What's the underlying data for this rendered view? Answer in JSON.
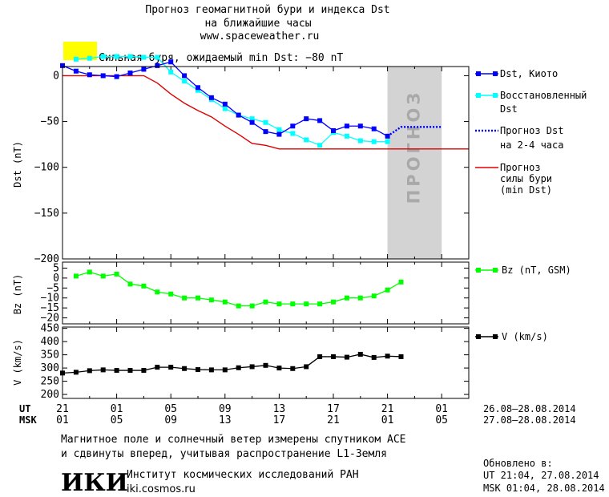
{
  "header": {
    "title_line1": "Прогноз геомагнитной бури и индекса Dst",
    "title_line2": "на ближайшие часы",
    "url": "www.spaceweather.ru",
    "storm_text": "Сильная буря, ожидаемый min Dst: −80 nT",
    "storm_color": "#ffff00"
  },
  "colors": {
    "dst": "#0000ff",
    "restored": "#00ffff",
    "forecast_dst": "#0000ff",
    "storm_forecast": "#dd0000",
    "bz": "#00ff00",
    "v": "#000000",
    "forecast_band": "#d3d3d3"
  },
  "chart_data": [
    {
      "type": "line",
      "ylabel": "Dst (nT)",
      "ylim": [
        -200,
        10
      ],
      "yticks": [
        "0",
        "−50",
        "−100",
        "−150",
        "−200"
      ],
      "xlim": [
        0,
        30
      ],
      "forecast_band": {
        "label": "ПРОГНОЗ",
        "x": [
          24,
          28
        ]
      },
      "series": [
        {
          "name": "Dst, Киото",
          "x": [
            0,
            1,
            2,
            3,
            4,
            5,
            6,
            7,
            8,
            9,
            10,
            11,
            12,
            13,
            14,
            15,
            16,
            17,
            18,
            19,
            20,
            21,
            22,
            23,
            24
          ],
          "values": [
            11,
            5,
            1,
            0,
            -1,
            3,
            7,
            11,
            15,
            0,
            -13,
            -24,
            -31,
            -43,
            -51,
            -61,
            -64,
            -55,
            -47,
            -49,
            -60,
            -55,
            -55,
            -58,
            -66
          ]
        },
        {
          "name": "Восстановленный Dst",
          "x": [
            1,
            2,
            3,
            4,
            5,
            6,
            7,
            8,
            9,
            10,
            11,
            12,
            13,
            14,
            15,
            16,
            17,
            18,
            19,
            20,
            21,
            22,
            23,
            24
          ],
          "values": [
            18,
            19,
            21,
            21,
            21,
            20,
            20,
            4,
            -6,
            -16,
            -26,
            -36,
            -43,
            -47,
            -51,
            -59,
            -63,
            -70,
            -76,
            -62,
            -66,
            -71,
            -72,
            -72
          ]
        },
        {
          "name": "Прогноз Dst на 2-4 часа",
          "x": [
            24,
            25,
            26,
            27,
            28
          ],
          "values": [
            -66,
            -56,
            -56,
            -56,
            -56
          ]
        },
        {
          "name": "Прогноз силы бури (min Dst)",
          "x": [
            0,
            3,
            6,
            7,
            8,
            9,
            10,
            11,
            12,
            13,
            14,
            15,
            16,
            30
          ],
          "values": [
            0,
            0,
            0,
            -8,
            -20,
            -30,
            -38,
            -45,
            -55,
            -64,
            -74,
            -76,
            -80,
            -80
          ]
        }
      ]
    },
    {
      "type": "line",
      "ylabel": "Bz (nT)",
      "ylim": [
        -23,
        8
      ],
      "yticks": [
        "5",
        "0",
        "−5",
        "−10",
        "−15",
        "−20"
      ],
      "xlim": [
        0,
        30
      ],
      "series": [
        {
          "name": "Bz (nT, GSM)",
          "x": [
            1,
            2,
            3,
            4,
            5,
            6,
            7,
            8,
            9,
            10,
            11,
            12,
            13,
            14,
            15,
            16,
            17,
            18,
            19,
            20,
            21,
            22,
            23,
            24,
            25
          ],
          "values": [
            1,
            3,
            1,
            2,
            -3,
            -4,
            -7,
            -8,
            -10,
            -10,
            -11,
            -12,
            -14,
            -14,
            -12,
            -13,
            -13,
            -13,
            -13,
            -12,
            -10,
            -10,
            -9,
            -6,
            -2
          ]
        }
      ]
    },
    {
      "type": "line",
      "ylabel": "V (km/s)",
      "ylim": [
        185,
        455
      ],
      "yticks": [
        "450",
        "400",
        "350",
        "300",
        "250",
        "200"
      ],
      "xlim": [
        0,
        30
      ],
      "series": [
        {
          "name": "V (km/s)",
          "x": [
            0,
            1,
            2,
            3,
            4,
            5,
            6,
            7,
            8,
            9,
            10,
            11,
            12,
            13,
            14,
            15,
            16,
            17,
            18,
            19,
            20,
            21,
            22,
            23,
            24,
            25
          ],
          "values": [
            281,
            284,
            290,
            293,
            291,
            291,
            291,
            303,
            303,
            298,
            294,
            293,
            293,
            301,
            305,
            310,
            300,
            298,
            305,
            343,
            343,
            341,
            352,
            340,
            345,
            343
          ]
        }
      ]
    }
  ],
  "xaxis": {
    "ut_label": "UT",
    "msk_label": "MSK",
    "ut_ticks": [
      "21",
      "01",
      "05",
      "09",
      "13",
      "17",
      "21",
      "01"
    ],
    "msk_ticks": [
      "01",
      "05",
      "09",
      "13",
      "17",
      "21",
      "01",
      "05"
    ],
    "ut_range": "26.08–28.08.2014",
    "msk_range": "27.08–28.08.2014"
  },
  "legend": {
    "dst": "Dst, Киото",
    "restored_1": "Восстановленный",
    "restored_2": "Dst",
    "forecast_1": "Прогноз Dst",
    "forecast_2": "на 2-4 часа",
    "storm_1": "Прогноз",
    "storm_2": "силы бури",
    "storm_3": "(min Dst)",
    "bz": "Bz (nT, GSM)",
    "v": "V (km/s)"
  },
  "footer": {
    "note_line1": "Магнитное поле и солнечный ветер измерены спутником ACE",
    "note_line2": "и сдвинуты вперед, учитывая распространение L1-Земля",
    "logo": "ИКИ",
    "institute": "Институт космических исследований РАН",
    "site": "iki.cosmos.ru",
    "updated_label": "Обновлено в:",
    "updated_ut": "UT  21:04, 27.08.2014",
    "updated_msk": "MSK 01:04, 28.08.2014"
  }
}
